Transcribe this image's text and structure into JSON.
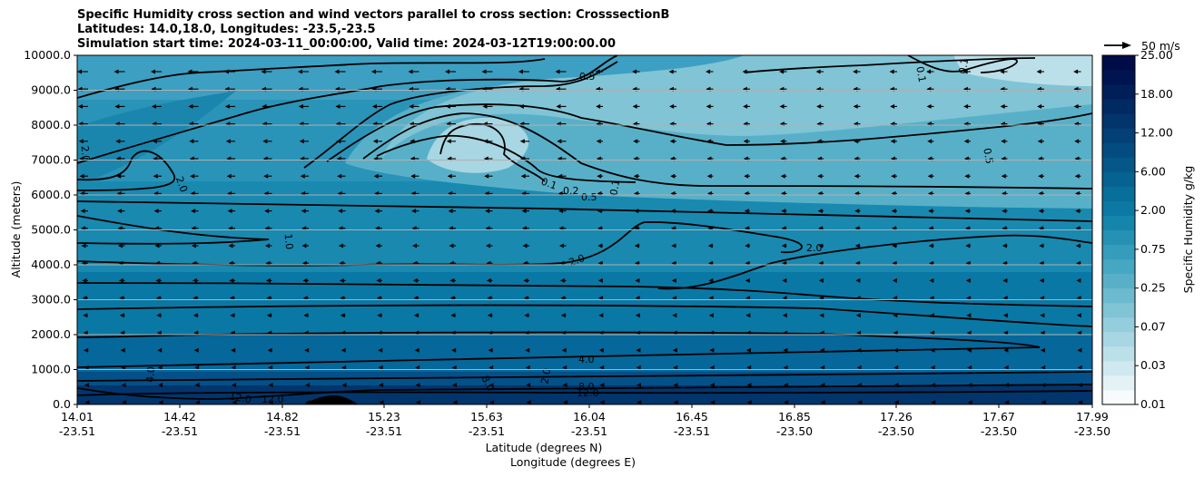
{
  "chart_data": {
    "type": "contour",
    "title_lines": [
      "Specific Humidity cross section and wind vectors parallel to cross section: CrosssectionB",
      "Latitudes: 14.0,18.0, Longitudes: -23.5,-23.5",
      "Simulation start time: 2024-03-11_00:00:00, Valid time: 2024-03-12T19:00:00.00"
    ],
    "ylabel": "Altitude (meters)",
    "xlabel_lat": "Latitude (degrees N)",
    "xlabel_lon": "Longitude (degrees E)",
    "ylim": [
      0,
      10000
    ],
    "y_ticks": [
      "0.0",
      "1000.0",
      "2000.0",
      "3000.0",
      "4000.0",
      "5000.0",
      "6000.0",
      "7000.0",
      "8000.0",
      "9000.0",
      "10000.0"
    ],
    "x_ticks_lat": [
      "14.01",
      "14.42",
      "14.82",
      "15.23",
      "15.63",
      "16.04",
      "16.45",
      "16.85",
      "17.26",
      "17.67",
      "17.99"
    ],
    "x_ticks_lon": [
      "-23.51",
      "-23.51",
      "-23.51",
      "-23.51",
      "-23.51",
      "-23.51",
      "-23.51",
      "-23.50",
      "-23.50",
      "-23.50",
      "-23.50"
    ],
    "colorbar": {
      "label": "Specific Humidity g/kg",
      "tick_labels": [
        "0.01",
        "0.03",
        "0.07",
        "0.25",
        "0.75",
        "2.00",
        "6.00",
        "12.00",
        "18.00",
        "25.00"
      ],
      "colors": [
        "#f7fbfd",
        "#e4f2f6",
        "#d0e9f0",
        "#bce0e9",
        "#a8d6e3",
        "#94cddc",
        "#80c4d5",
        "#6cbace",
        "#58b0c8",
        "#45a7c1",
        "#359cbb",
        "#2591b3",
        "#1585ab",
        "#0b79a3",
        "#086e9a",
        "#066291",
        "#055788",
        "#044c7f",
        "#034076",
        "#02356c",
        "#012a62",
        "#001f59",
        "#001450",
        "#000c47"
      ]
    },
    "contour_levels": [
      "0.1",
      "0.2",
      "0.5",
      "1.0",
      "2.0",
      "4.0",
      "8.0",
      "12.0"
    ],
    "contour_labels": [
      "0.5",
      "0.1",
      "0.1",
      "0.5",
      "0.1",
      "0.2",
      "0.5",
      "0.1",
      "2.0",
      "1.0",
      "2.0",
      "2.0",
      "4.0",
      "8.0",
      "12.0",
      "12.0",
      "12.0",
      "4.0",
      "8.0",
      "2.0",
      "2.0"
    ],
    "wind_reference": "50 m/s"
  }
}
